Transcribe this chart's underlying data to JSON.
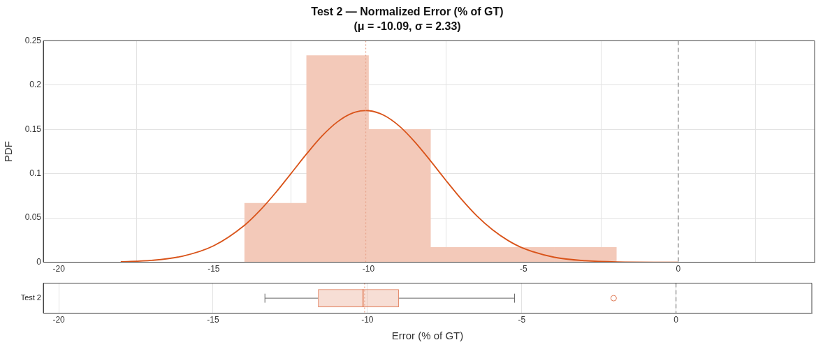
{
  "chart_data": [
    {
      "type": "histogram",
      "title": "Test 2 — Normalized Error (% of GT)",
      "subtitle": "(μ = -10.09, σ = 2.33)",
      "ylabel": "PDF",
      "bins": [
        -14,
        -12,
        -10,
        -8,
        -6,
        -4,
        -2
      ],
      "values": [
        0.0667,
        0.2333,
        0.15,
        0.0167,
        0.0167,
        0.0167
      ],
      "color": "#f3c9b9",
      "series": [
        {
          "type": "line",
          "color": "#d95319",
          "x": [
            -18,
            -17,
            -16,
            -15,
            -14,
            -13.5,
            -13,
            -12.5,
            -12,
            -11.5,
            -11,
            -10.5,
            -10.09,
            -10,
            -9.5,
            -9,
            -8.5,
            -8,
            -7.5,
            -7,
            -6.5,
            -6,
            -5.5,
            -5,
            -4,
            -3,
            -2,
            0
          ],
          "values": [
            0.0005,
            0.0021,
            0.0069,
            0.0186,
            0.0419,
            0.0587,
            0.0785,
            0.1003,
            0.1223,
            0.1426,
            0.1586,
            0.1686,
            0.1712,
            0.1711,
            0.1658,
            0.1535,
            0.1356,
            0.1145,
            0.0923,
            0.0711,
            0.0522,
            0.0367,
            0.0246,
            0.0157,
            0.0056,
            0.0017,
            0.0004,
            0
          ]
        }
      ],
      "xlim": [
        -20.5,
        4.4
      ],
      "xticks": [
        -20,
        -15,
        -10,
        -5,
        0
      ],
      "ylim": [
        0,
        0.25
      ],
      "yticks": [
        0,
        0.05,
        0.1,
        0.15,
        0.2,
        0.25
      ],
      "grid": true,
      "ref_lines": [
        {
          "axis": "x",
          "value": -10.09,
          "color": "#e8a48c",
          "line_style": "dotted"
        },
        {
          "axis": "x",
          "value": 0,
          "color": "#808080",
          "line_style": "dashed"
        }
      ]
    },
    {
      "type": "box",
      "orientation": "horizontal",
      "categories": [
        "Test 2"
      ],
      "xlabel": "Error (% of GT)",
      "color": "#e07b57",
      "boxes": [
        {
          "low": -13.32,
          "q1": -11.6,
          "median": -10.14,
          "q3": -8.98,
          "high": -5.23,
          "outliers": [
            -2.02
          ]
        }
      ],
      "xlim": [
        -20.5,
        4.4
      ],
      "xticks": [
        -20,
        -15,
        -10,
        -5,
        0
      ],
      "grid": true,
      "ref_lines": [
        {
          "axis": "x",
          "value": -10.09,
          "color": "#e8a48c",
          "line_style": "dotted"
        },
        {
          "axis": "x",
          "value": 0,
          "color": "#808080",
          "line_style": "dashed"
        }
      ]
    }
  ]
}
